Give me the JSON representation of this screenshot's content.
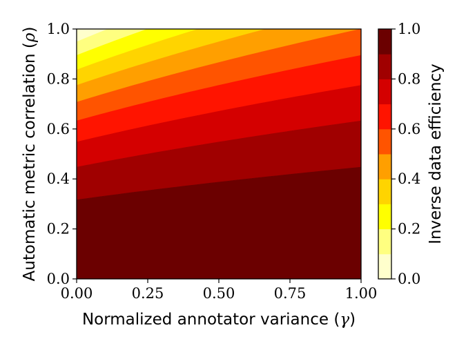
{
  "chart_data": {
    "type": "contour",
    "xlabel": "Normalized annotator variance",
    "xlabel_symbol": "γ",
    "ylabel": "Automatic metric correlation",
    "ylabel_symbol": "ρ",
    "colorbar_label": "Inverse data efficiency",
    "xlim": [
      0.0,
      1.0
    ],
    "ylim": [
      0.0,
      1.0
    ],
    "x_ticks": [
      "0.00",
      "0.25",
      "0.50",
      "0.75",
      "1.00"
    ],
    "y_ticks": [
      "0.0",
      "0.2",
      "0.4",
      "0.6",
      "0.8",
      "1.0"
    ],
    "colorbar_ticks": [
      "0.0",
      "0.2",
      "0.4",
      "0.6",
      "0.8",
      "1.0"
    ],
    "function": "1 - rho^2 / (1 + gamma)",
    "levels": [
      0.0,
      0.1,
      0.2,
      0.3,
      0.4,
      0.5,
      0.6,
      0.7,
      0.8,
      0.9,
      1.0
    ],
    "level_colors": [
      "#ffffcc",
      "#ffff80",
      "#ffff00",
      "#ffd400",
      "#ff9f00",
      "#ff5400",
      "#ff1400",
      "#d40000",
      "#a00000",
      "#6b0000",
      "#2a0000"
    ],
    "colormap": "hot_r",
    "grid": false
  }
}
